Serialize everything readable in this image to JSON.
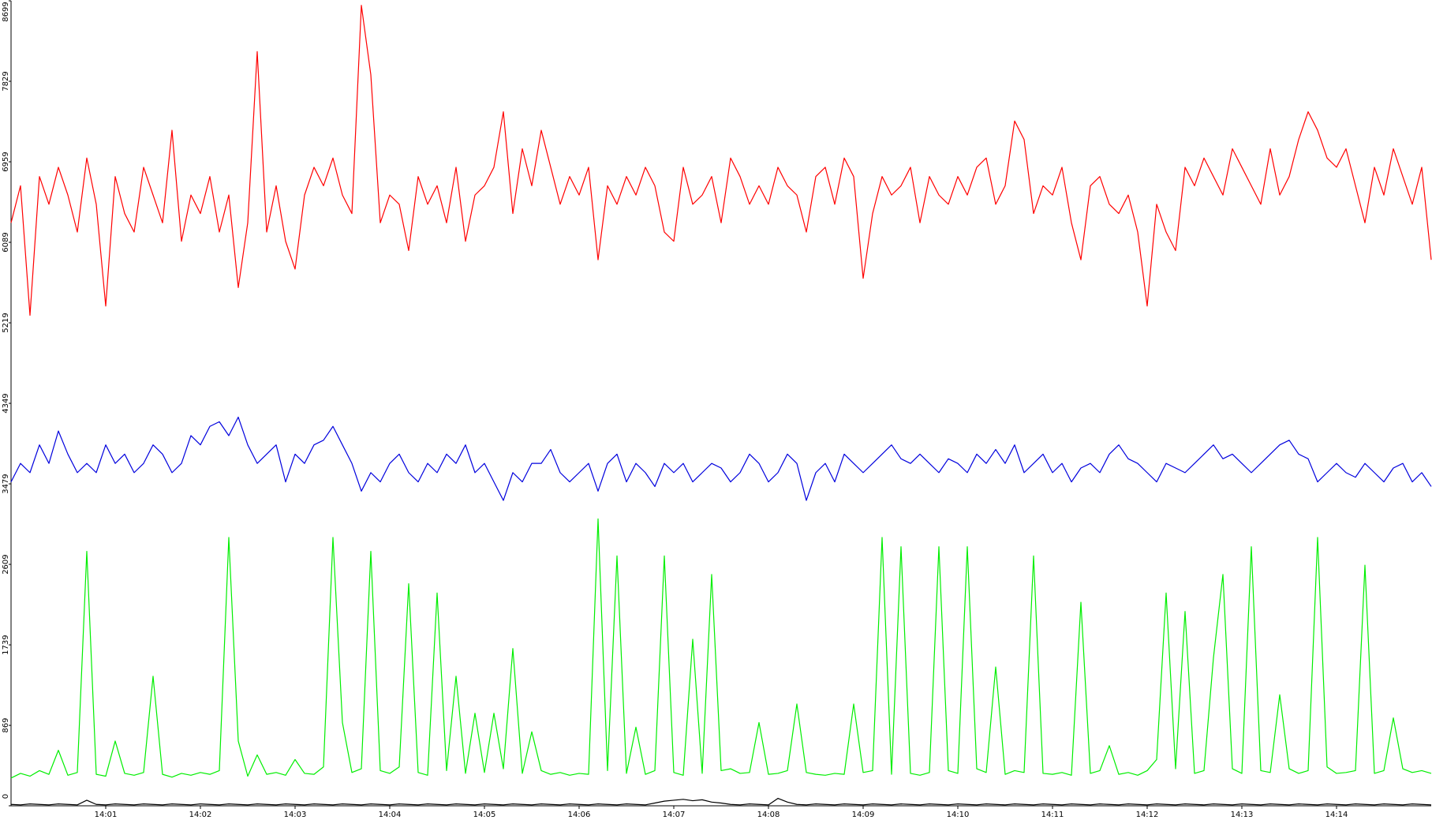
{
  "chart_data": {
    "type": "line",
    "categories": [
      null,
      null,
      null,
      null,
      null,
      null,
      null,
      null,
      null,
      null,
      "14:01",
      null,
      null,
      null,
      null,
      null,
      null,
      null,
      null,
      null,
      "14:02",
      null,
      null,
      null,
      null,
      null,
      null,
      null,
      null,
      null,
      "14:03",
      null,
      null,
      null,
      null,
      null,
      null,
      null,
      null,
      null,
      "14:04",
      null,
      null,
      null,
      null,
      null,
      null,
      null,
      null,
      null,
      "14:05",
      null,
      null,
      null,
      null,
      null,
      null,
      null,
      null,
      null,
      "14:06",
      null,
      null,
      null,
      null,
      null,
      null,
      null,
      null,
      null,
      "14:07",
      null,
      null,
      null,
      null,
      null,
      null,
      null,
      null,
      null,
      "14:08",
      null,
      null,
      null,
      null,
      null,
      null,
      null,
      null,
      null,
      "14:09",
      null,
      null,
      null,
      null,
      null,
      null,
      null,
      null,
      null,
      "14:10",
      null,
      null,
      null,
      null,
      null,
      null,
      null,
      null,
      null,
      "14:11",
      null,
      null,
      null,
      null,
      null,
      null,
      null,
      null,
      null,
      "14:12",
      null,
      null,
      null,
      null,
      null,
      null,
      null,
      null,
      null,
      "14:13",
      null,
      null,
      null,
      null,
      null,
      null,
      null,
      null,
      null,
      "14:14",
      null,
      null,
      null,
      null,
      null,
      null,
      null,
      null,
      null,
      null
    ],
    "series": [
      {
        "color": "#ff0000",
        "values": [
          6300,
          6700,
          5300,
          6800,
          6500,
          6900,
          6600,
          6200,
          7000,
          6500,
          5400,
          6800,
          6400,
          6200,
          6900,
          6600,
          6300,
          7300,
          6100,
          6600,
          6400,
          6800,
          6200,
          6600,
          5600,
          6300,
          8150,
          6200,
          6700,
          6100,
          5800,
          6600,
          6900,
          6700,
          7000,
          6600,
          6400,
          8650,
          7900,
          6300,
          6600,
          6500,
          6000,
          6800,
          6500,
          6700,
          6300,
          6900,
          6100,
          6600,
          6700,
          6900,
          7500,
          6400,
          7100,
          6700,
          7300,
          6900,
          6500,
          6800,
          6600,
          6900,
          5900,
          6700,
          6500,
          6800,
          6600,
          6900,
          6700,
          6200,
          6100,
          6900,
          6500,
          6600,
          6800,
          6300,
          7000,
          6800,
          6500,
          6700,
          6500,
          6900,
          6700,
          6600,
          6200,
          6800,
          6900,
          6500,
          7000,
          6800,
          5700,
          6400,
          6800,
          6600,
          6700,
          6900,
          6300,
          6800,
          6600,
          6500,
          6800,
          6600,
          6900,
          7000,
          6500,
          6700,
          7400,
          7200,
          6400,
          6700,
          6600,
          6900,
          6300,
          5900,
          6700,
          6800,
          6500,
          6400,
          6600,
          6200,
          5400,
          6500,
          6200,
          6000,
          6900,
          6700,
          7000,
          6800,
          6600,
          7100,
          6900,
          6700,
          6500,
          7100,
          6600,
          6800,
          7200,
          7500,
          7300,
          7000,
          6900,
          7100,
          6700,
          6300,
          6900,
          6600,
          7100,
          6800,
          6500,
          6900,
          5900
        ]
      },
      {
        "color": "#0000dd",
        "values": [
          3500,
          3700,
          3600,
          3900,
          3700,
          4050,
          3800,
          3600,
          3700,
          3600,
          3900,
          3700,
          3800,
          3600,
          3700,
          3900,
          3800,
          3600,
          3700,
          4000,
          3900,
          4100,
          4150,
          4000,
          4200,
          3900,
          3700,
          3800,
          3900,
          3500,
          3800,
          3700,
          3900,
          3950,
          4100,
          3900,
          3700,
          3400,
          3600,
          3500,
          3700,
          3800,
          3600,
          3500,
          3700,
          3600,
          3800,
          3700,
          3900,
          3600,
          3700,
          3500,
          3300,
          3600,
          3500,
          3700,
          3700,
          3850,
          3600,
          3500,
          3600,
          3700,
          3400,
          3700,
          3800,
          3500,
          3700,
          3600,
          3450,
          3700,
          3600,
          3700,
          3500,
          3600,
          3700,
          3650,
          3500,
          3600,
          3800,
          3700,
          3500,
          3600,
          3800,
          3700,
          3300,
          3600,
          3700,
          3500,
          3800,
          3700,
          3600,
          3700,
          3800,
          3900,
          3750,
          3700,
          3800,
          3700,
          3600,
          3750,
          3700,
          3600,
          3800,
          3700,
          3850,
          3700,
          3900,
          3600,
          3700,
          3800,
          3600,
          3700,
          3500,
          3650,
          3700,
          3600,
          3800,
          3900,
          3750,
          3700,
          3600,
          3500,
          3700,
          3650,
          3600,
          3700,
          3800,
          3900,
          3750,
          3800,
          3700,
          3600,
          3700,
          3800,
          3900,
          3950,
          3800,
          3750,
          3500,
          3600,
          3700,
          3600,
          3550,
          3700,
          3600,
          3500,
          3650,
          3700,
          3500,
          3600,
          3450
        ]
      },
      {
        "color": "#00ee00",
        "values": [
          300,
          350,
          320,
          380,
          340,
          600,
          330,
          360,
          2750,
          340,
          320,
          700,
          350,
          330,
          360,
          1400,
          340,
          310,
          350,
          330,
          360,
          340,
          380,
          2900,
          700,
          320,
          550,
          340,
          360,
          330,
          500,
          350,
          340,
          420,
          2900,
          900,
          360,
          400,
          2750,
          380,
          350,
          420,
          2400,
          360,
          330,
          2300,
          380,
          1400,
          350,
          1000,
          360,
          1000,
          400,
          1700,
          350,
          800,
          380,
          340,
          360,
          330,
          350,
          340,
          3100,
          380,
          2700,
          350,
          850,
          340,
          380,
          2700,
          360,
          330,
          1800,
          350,
          2500,
          380,
          400,
          350,
          360,
          900,
          340,
          350,
          380,
          1100,
          360,
          340,
          330,
          350,
          340,
          1100,
          360,
          380,
          2900,
          340,
          2800,
          350,
          330,
          360,
          2800,
          380,
          350,
          2800,
          400,
          360,
          1500,
          340,
          380,
          360,
          2700,
          350,
          340,
          360,
          330,
          2200,
          350,
          380,
          650,
          340,
          360,
          330,
          380,
          500,
          2300,
          400,
          2100,
          350,
          380,
          1600,
          2500,
          400,
          350,
          2800,
          380,
          360,
          1200,
          400,
          350,
          380,
          2900,
          420,
          350,
          360,
          380,
          2600,
          350,
          380,
          950,
          400,
          360,
          380,
          350
        ]
      },
      {
        "color": "#000000",
        "values": [
          15,
          10,
          20,
          15,
          10,
          20,
          15,
          10,
          60,
          15,
          10,
          20,
          15,
          10,
          20,
          15,
          10,
          20,
          15,
          10,
          20,
          15,
          10,
          20,
          15,
          10,
          20,
          15,
          10,
          20,
          15,
          10,
          20,
          15,
          10,
          20,
          15,
          10,
          20,
          15,
          10,
          20,
          15,
          10,
          20,
          15,
          10,
          20,
          15,
          10,
          20,
          15,
          10,
          20,
          15,
          10,
          20,
          15,
          10,
          20,
          15,
          10,
          20,
          15,
          10,
          20,
          15,
          10,
          30,
          50,
          60,
          70,
          55,
          65,
          40,
          30,
          15,
          10,
          20,
          15,
          10,
          80,
          40,
          15,
          10,
          20,
          15,
          10,
          20,
          15,
          10,
          20,
          15,
          10,
          20,
          15,
          10,
          20,
          15,
          10,
          20,
          15,
          10,
          20,
          15,
          10,
          20,
          15,
          10,
          20,
          15,
          10,
          20,
          15,
          10,
          20,
          15,
          10,
          20,
          15,
          10,
          20,
          15,
          10,
          20,
          15,
          10,
          20,
          15,
          10,
          20,
          15,
          10,
          20,
          15,
          10,
          20,
          15,
          10,
          20,
          15,
          10,
          20,
          15,
          10,
          20,
          15,
          10,
          20,
          15,
          10
        ]
      }
    ],
    "ylim": [
      0,
      8699
    ],
    "yticks": [
      0,
      869,
      1739,
      2609,
      3479,
      4349,
      5219,
      6089,
      6959,
      7829,
      8699
    ]
  }
}
